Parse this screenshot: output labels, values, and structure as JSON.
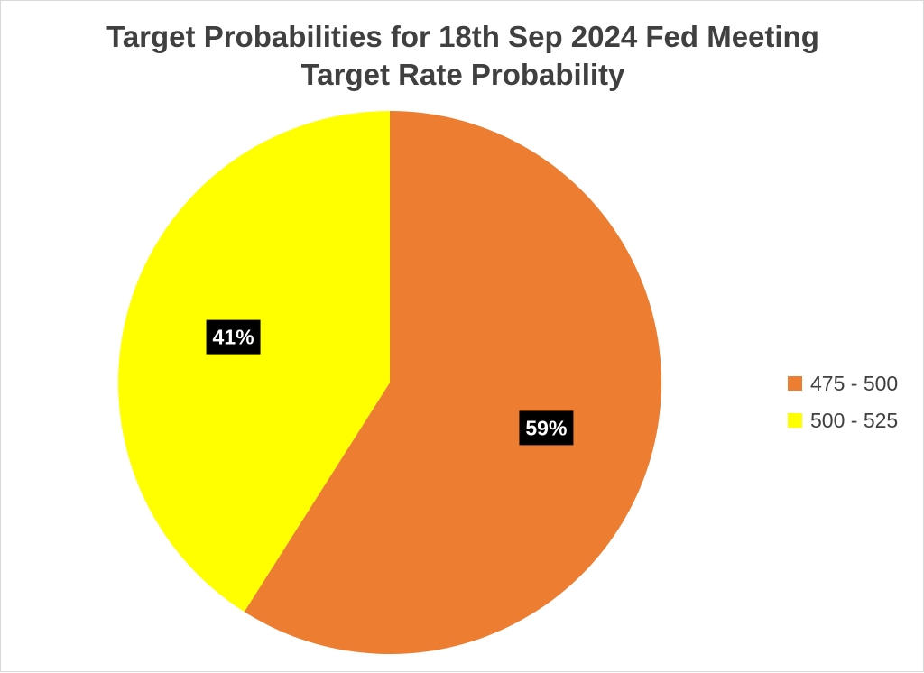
{
  "chart_data": {
    "type": "pie",
    "title": "Target Probabilities for 18th Sep 2024 Fed Meeting",
    "subtitle": "Target Rate Probability",
    "categories": [
      "475 - 500",
      "500 - 525"
    ],
    "values": [
      59,
      41
    ],
    "data_labels": [
      "59%",
      "41%"
    ],
    "colors": [
      "#ED7D31",
      "#FFFF00"
    ],
    "start_angle_deg": 0,
    "direction": "clockwise",
    "legend_position": "right"
  }
}
